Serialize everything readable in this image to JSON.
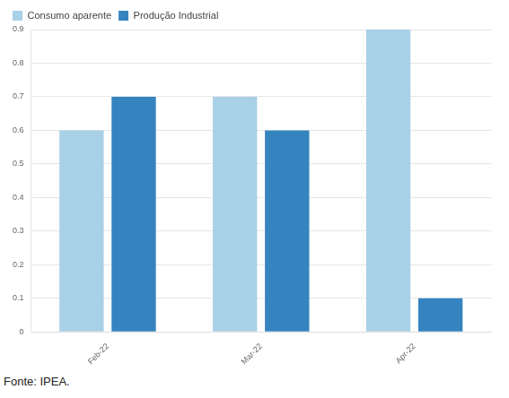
{
  "chart_data": {
    "type": "bar",
    "categories": [
      "Feb-22",
      "Mar-22",
      "Apr-22"
    ],
    "series": [
      {
        "name": "Consumo aparente",
        "color": "#a8d0e6",
        "values": [
          0.6,
          0.7,
          0.9
        ]
      },
      {
        "name": "Produção Industrial",
        "color": "#3584c0",
        "values": [
          0.7,
          0.6,
          0.1
        ]
      }
    ],
    "ylim": [
      0,
      0.9
    ],
    "yticks": [
      0,
      0.1,
      0.2,
      0.3,
      0.4,
      0.5,
      0.6,
      0.7,
      0.8,
      0.9
    ],
    "grid": true,
    "legend": "top-left",
    "source": "Fonte: IPEA."
  }
}
